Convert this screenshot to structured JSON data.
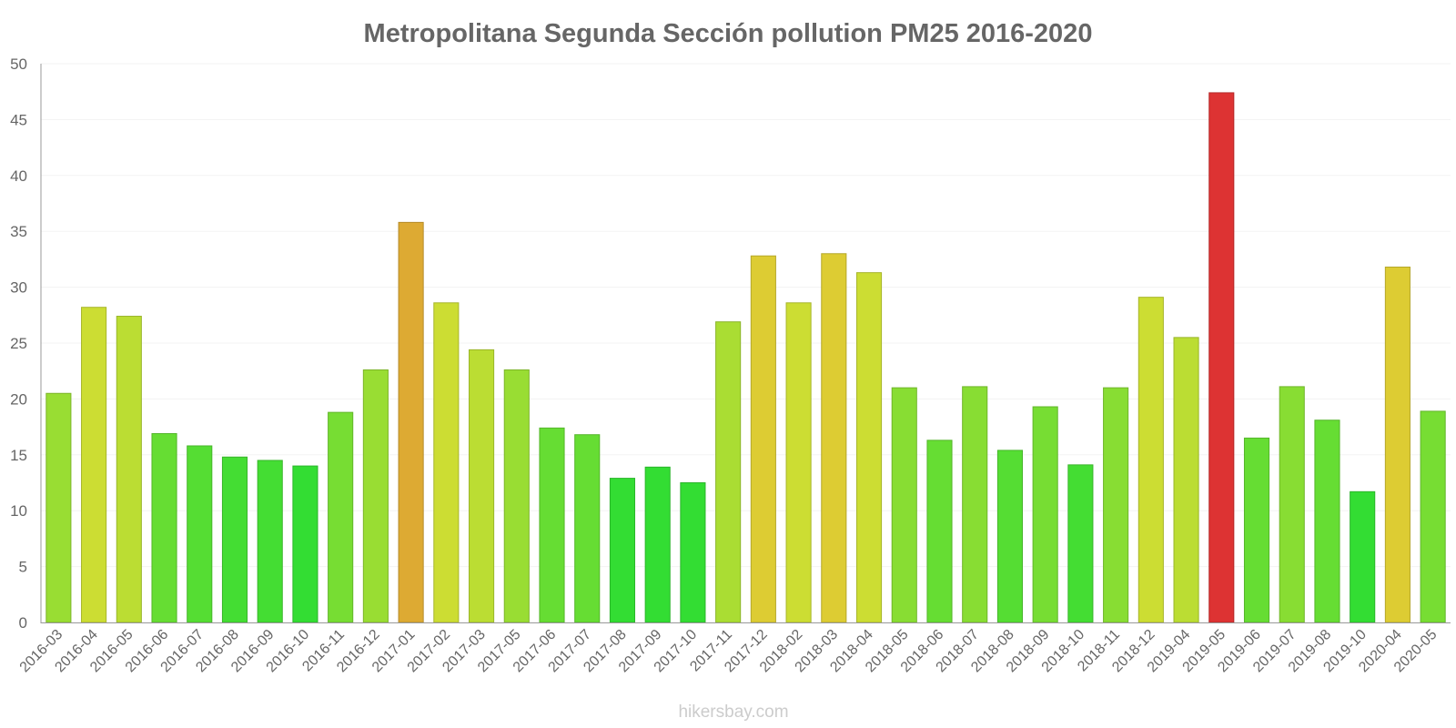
{
  "chart_data": {
    "type": "bar",
    "title": "Metropolitana Segunda Sección pollution PM25 2016-2020",
    "xlabel": "",
    "ylabel": "",
    "ylim": [
      0,
      50
    ],
    "yticks": [
      0,
      5,
      10,
      15,
      20,
      25,
      30,
      35,
      40,
      45,
      50
    ],
    "grid": true,
    "categories": [
      "2016-03",
      "2016-04",
      "2016-05",
      "2016-06",
      "2016-07",
      "2016-08",
      "2016-09",
      "2016-10",
      "2016-11",
      "2016-12",
      "2017-01",
      "2017-02",
      "2017-03",
      "2017-05",
      "2017-06",
      "2017-07",
      "2017-08",
      "2017-09",
      "2017-10",
      "2017-11",
      "2017-12",
      "2018-02",
      "2018-03",
      "2018-04",
      "2018-05",
      "2018-06",
      "2018-07",
      "2018-08",
      "2018-09",
      "2018-10",
      "2018-11",
      "2018-12",
      "2019-04",
      "2019-05",
      "2019-06",
      "2019-07",
      "2019-08",
      "2019-10",
      "2020-04",
      "2020-05"
    ],
    "values": [
      20.5,
      28.2,
      27.4,
      16.9,
      15.8,
      14.8,
      14.5,
      14.0,
      18.8,
      22.6,
      35.8,
      28.6,
      24.4,
      22.6,
      17.4,
      16.8,
      12.9,
      13.9,
      12.5,
      26.9,
      32.8,
      28.6,
      33.0,
      31.3,
      21.0,
      16.3,
      21.1,
      15.4,
      19.3,
      14.1,
      21.0,
      29.1,
      25.5,
      47.4,
      16.5,
      21.1,
      18.1,
      11.7,
      31.8,
      18.9
    ],
    "colors": [
      "#99dd33",
      "#ccdd33",
      "#bbdd33",
      "#66dd33",
      "#55dd33",
      "#44dd33",
      "#44dd33",
      "#33dd33",
      "#77dd33",
      "#99dd33",
      "#ddaa33",
      "#ccdd33",
      "#bbdd33",
      "#99dd33",
      "#66dd33",
      "#66dd33",
      "#33dd33",
      "#33dd33",
      "#33dd33",
      "#aadd33",
      "#ddcc33",
      "#ccdd33",
      "#ddcc33",
      "#ccdd33",
      "#88dd33",
      "#66dd33",
      "#88dd33",
      "#55dd33",
      "#77dd33",
      "#44dd33",
      "#88dd33",
      "#ccdd33",
      "#bbdd33",
      "#dd3333",
      "#66dd33",
      "#88dd33",
      "#66dd33",
      "#33dd33",
      "#ddcc33",
      "#77dd33"
    ]
  },
  "credit": "hikersbay.com"
}
